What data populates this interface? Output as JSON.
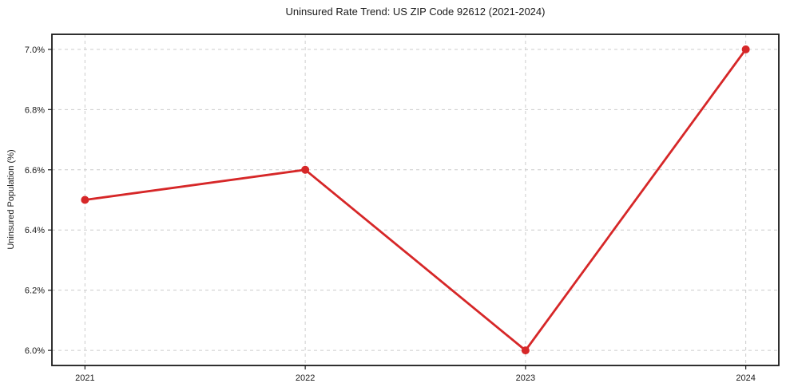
{
  "chart_data": {
    "type": "line",
    "title": "Uninsured Rate Trend: US ZIP Code 92612 (2021-2024)",
    "xlabel": "",
    "ylabel": "Uninsured Population (%)",
    "x": [
      2021,
      2022,
      2023,
      2024
    ],
    "xtick_labels": [
      "2021",
      "2022",
      "2023",
      "2024"
    ],
    "series": [
      {
        "values": [
          6.5,
          6.6,
          6.0,
          7.0
        ],
        "color": "#d62728",
        "marker": "circle"
      }
    ],
    "yticks": [
      6.0,
      6.2,
      6.4,
      6.6,
      6.8,
      7.0
    ],
    "ytick_labels": [
      "6.0%",
      "6.2%",
      "6.4%",
      "6.6%",
      "6.8%",
      "7.0%"
    ],
    "xlim": [
      2020.85,
      2024.15
    ],
    "ylim": [
      5.95,
      7.05
    ],
    "grid": true,
    "grid_color": "#cccccc",
    "grid_style": "dashed",
    "axis_color": "#1a1a1a",
    "background": "#ffffff",
    "legend": "none"
  }
}
